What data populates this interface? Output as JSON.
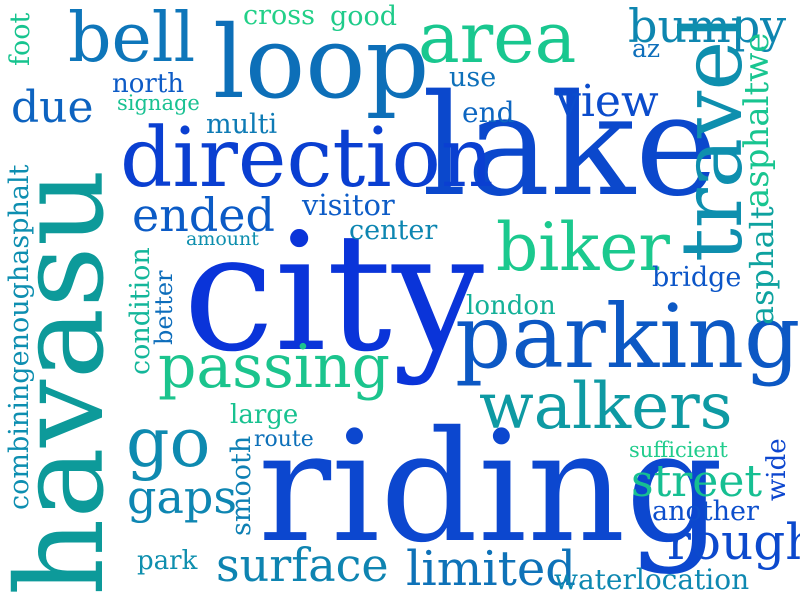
{
  "words": [
    {
      "id": "city",
      "text": "city",
      "color": "#0a34d9"
    },
    {
      "id": "riding",
      "text": "riding",
      "color": "#0c47cf"
    },
    {
      "id": "lake",
      "text": "lake",
      "color": "#0b48cc"
    },
    {
      "id": "havasu",
      "text": "havasu",
      "color": "#0d9a9a"
    },
    {
      "id": "parking",
      "text": "parking",
      "color": "#0c58c4"
    },
    {
      "id": "direction",
      "text": "direction",
      "color": "#0a3fd1"
    },
    {
      "id": "loop",
      "text": "loop",
      "color": "#0d6fb8"
    },
    {
      "id": "area",
      "text": "area",
      "color": "#0e8fae"
    },
    {
      "id": "travel",
      "text": "travel",
      "color": "#19c78f"
    },
    {
      "id": "walkers",
      "text": "walkers",
      "color": "#0e9aa3"
    },
    {
      "id": "biker",
      "text": "biker",
      "color": "#1bc98e"
    },
    {
      "id": "bell",
      "text": "bell",
      "color": "#0e76ba"
    },
    {
      "id": "passing",
      "text": "passing",
      "color": "#1bc48d"
    },
    {
      "id": "go",
      "text": "go",
      "color": "#0e8ab0"
    },
    {
      "id": "surface",
      "text": "surface",
      "color": "#0e84b1"
    },
    {
      "id": "limited",
      "text": "limited",
      "color": "#0e72b8"
    },
    {
      "id": "rough",
      "text": "rough",
      "color": "#0c49cd"
    },
    {
      "id": "street",
      "text": "street",
      "color": "#16bf92"
    },
    {
      "id": "view",
      "text": "view",
      "color": "#0b4ccc"
    },
    {
      "id": "ended",
      "text": "ended",
      "color": "#0b5bc6"
    },
    {
      "id": "bumpy",
      "text": "bumpy",
      "color": "#0e86b0"
    },
    {
      "id": "gaps",
      "text": "gaps",
      "color": "#0e86b2"
    },
    {
      "id": "due",
      "text": "due",
      "color": "#0d63c0"
    },
    {
      "id": "asphaltwe",
      "text": "asphaltwe",
      "color": "#18c590"
    },
    {
      "id": "asphalt",
      "text": "asphalt",
      "color": "#0ea29f"
    },
    {
      "id": "combiningenoughasphalt",
      "text": "combiningenoughasphalt",
      "color": "#0d8eb0"
    },
    {
      "id": "another",
      "text": "another",
      "color": "#0c4ecc"
    },
    {
      "id": "smooth",
      "text": "smooth",
      "color": "#0e80b4"
    },
    {
      "id": "waterlocation",
      "text": "waterlocation",
      "color": "#0e88b1"
    },
    {
      "id": "visitor",
      "text": "visitor",
      "color": "#0d5cc7"
    },
    {
      "id": "center",
      "text": "center",
      "color": "#0d86b1"
    },
    {
      "id": "london",
      "text": "london",
      "color": "#14b198"
    },
    {
      "id": "north",
      "text": "north",
      "color": "#0d5bc6"
    },
    {
      "id": "signage",
      "text": "signage",
      "color": "#19c192"
    },
    {
      "id": "multi",
      "text": "multi",
      "color": "#0e7bb5"
    },
    {
      "id": "end",
      "text": "end",
      "color": "#0d66c1"
    },
    {
      "id": "use",
      "text": "use",
      "color": "#0e70ba"
    },
    {
      "id": "az",
      "text": "az",
      "color": "#0e6fbb"
    },
    {
      "id": "cross",
      "text": "cross",
      "color": "#22d088"
    },
    {
      "id": "good",
      "text": "good",
      "color": "#1fcb8a"
    },
    {
      "id": "foot",
      "text": "foot",
      "color": "#17c48f"
    },
    {
      "id": "amount",
      "text": "amount",
      "color": "#0e8fae"
    },
    {
      "id": "better",
      "text": "better",
      "color": "#0d6dbb"
    },
    {
      "id": "condition",
      "text": "condition",
      "color": "#14b69a"
    },
    {
      "id": "bridge",
      "text": "bridge",
      "color": "#0c56c8"
    },
    {
      "id": "large",
      "text": "large",
      "color": "#18c290"
    },
    {
      "id": "route",
      "text": "route",
      "color": "#0d70b9"
    },
    {
      "id": "sufficient",
      "text": "sufficient",
      "color": "#20cc8c"
    },
    {
      "id": "wide",
      "text": "wide",
      "color": "#0c46cf"
    },
    {
      "id": "park",
      "text": "park",
      "color": "#0e8fae"
    }
  ]
}
